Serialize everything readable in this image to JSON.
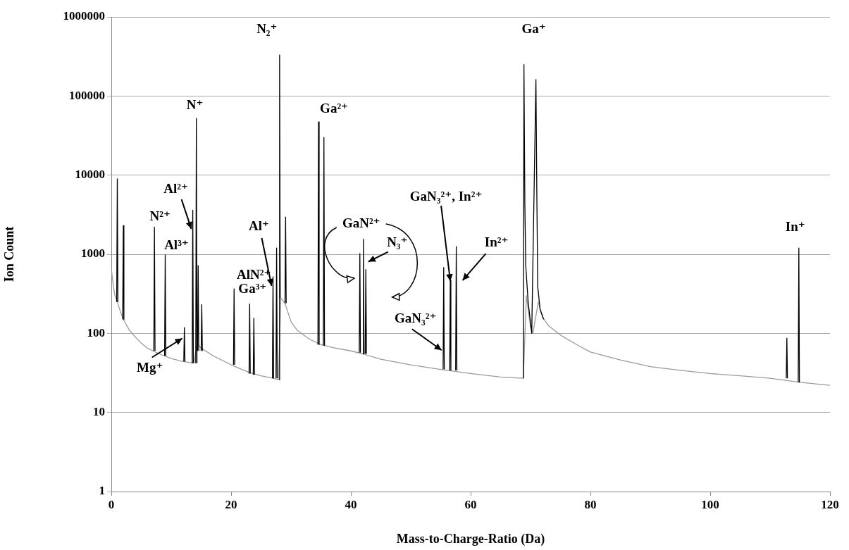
{
  "chart_data": {
    "type": "line",
    "xlabel": "Mass-to-Charge-Ratio (Da)",
    "ylabel": "Ion Count",
    "xlim": [
      0,
      120
    ],
    "xticks": [
      0,
      20,
      40,
      60,
      80,
      100,
      120
    ],
    "ylim": [
      1,
      1000000
    ],
    "yticks": [
      1,
      10,
      100,
      1000,
      10000,
      100000,
      1000000
    ],
    "log": "y",
    "grid": "y",
    "legend": false,
    "series": [
      {
        "color": "#9a9a9a",
        "x": [
          0,
          0.3,
          0.6,
          1,
          1.5,
          2,
          3,
          4,
          5,
          6,
          8,
          10,
          12,
          13.8,
          14.3,
          15,
          17,
          20,
          23,
          25,
          27,
          27.9,
          28.3,
          29,
          30,
          31,
          33,
          35,
          37,
          40,
          42,
          45,
          50,
          55,
          60,
          65,
          68.8,
          69.3,
          70,
          70.4,
          71.3,
          72,
          73,
          75,
          78,
          80,
          85,
          90,
          95,
          100,
          105,
          110,
          115,
          120
        ],
        "values": [
          650,
          420,
          300,
          250,
          190,
          150,
          110,
          90,
          75,
          65,
          55,
          48,
          44,
          42,
          75,
          65,
          52,
          40,
          32,
          29,
          27,
          26,
          280,
          240,
          140,
          110,
          85,
          72,
          66,
          60,
          55,
          47,
          40,
          35,
          31,
          28,
          27,
          300,
          120,
          100,
          250,
          160,
          125,
          95,
          70,
          58,
          46,
          38,
          34,
          31,
          29,
          27,
          24,
          22
        ]
      },
      {
        "color": "#000000",
        "x": [
          0.9,
          1,
          1.1
        ],
        "values": [
          250,
          9000,
          250
        ]
      },
      {
        "color": "#000000",
        "x": [
          1.9,
          2,
          2.1
        ],
        "values": [
          150,
          2300,
          150
        ]
      },
      {
        "color": "#000000",
        "x": [
          7.1,
          7.2,
          7.3
        ],
        "values": [
          60,
          2200,
          60
        ]
      },
      {
        "color": "#000000",
        "x": [
          8.9,
          9,
          9.1
        ],
        "values": [
          52,
          980,
          52
        ]
      },
      {
        "color": "#000000",
        "x": [
          12.1,
          12.2,
          12.3
        ],
        "values": [
          44,
          118,
          44
        ]
      },
      {
        "color": "#000000",
        "x": [
          13.5,
          13.6,
          13.7
        ],
        "values": [
          42,
          3600,
          42
        ]
      },
      {
        "color": "#000000",
        "x": [
          14.1,
          14.2,
          14.3
        ],
        "values": [
          42,
          52000,
          42
        ]
      },
      {
        "color": "#000000",
        "x": [
          14.4,
          14.5,
          14.6
        ],
        "values": [
          60,
          720,
          60
        ]
      },
      {
        "color": "#000000",
        "x": [
          15,
          15.1,
          15.2
        ],
        "values": [
          60,
          230,
          60
        ]
      },
      {
        "color": "#000000",
        "x": [
          20.4,
          20.5,
          20.6
        ],
        "values": [
          40,
          365,
          40
        ]
      },
      {
        "color": "#000000",
        "x": [
          23,
          23.1,
          23.2
        ],
        "values": [
          31,
          235,
          31
        ]
      },
      {
        "color": "#000000",
        "x": [
          23.7,
          23.8,
          23.9
        ],
        "values": [
          30,
          155,
          30
        ]
      },
      {
        "color": "#000000",
        "x": [
          26.9,
          27,
          27.1
        ],
        "values": [
          27,
          520,
          27
        ]
      },
      {
        "color": "#000000",
        "x": [
          27.5,
          27.6,
          27.7
        ],
        "values": [
          27,
          1200,
          27
        ]
      },
      {
        "color": "#000000",
        "x": [
          28,
          28.1,
          28.2
        ],
        "values": [
          26,
          330000,
          280
        ]
      },
      {
        "color": "#000000",
        "x": [
          29,
          29.1,
          29.2
        ],
        "values": [
          240,
          2950,
          240
        ]
      },
      {
        "color": "#000000",
        "x": [
          34.5,
          34.6,
          34.7
        ],
        "values": [
          72,
          47000,
          72
        ]
      },
      {
        "color": "#000000",
        "x": [
          35.4,
          35.5,
          35.6
        ],
        "values": [
          70,
          30000,
          70
        ]
      },
      {
        "color": "#000000",
        "x": [
          41.4,
          41.5,
          41.6
        ],
        "values": [
          57,
          1020,
          57
        ]
      },
      {
        "color": "#000000",
        "x": [
          42,
          42.1,
          42.2
        ],
        "values": [
          55,
          1550,
          55
        ]
      },
      {
        "color": "#000000",
        "x": [
          42.4,
          42.5,
          42.6
        ],
        "values": [
          55,
          640,
          55
        ]
      },
      {
        "color": "#000000",
        "x": [
          55.4,
          55.5,
          55.6
        ],
        "values": [
          35,
          680,
          35
        ]
      },
      {
        "color": "#000000",
        "x": [
          56.5,
          56.6,
          56.7
        ],
        "values": [
          34,
          470,
          34
        ]
      },
      {
        "color": "#000000",
        "x": [
          57.5,
          57.6,
          57.7
        ],
        "values": [
          34,
          1250,
          34
        ]
      },
      {
        "color": "#000000",
        "x": [
          68.8,
          68.9,
          69.05,
          69.2,
          69.6,
          70.2,
          70.9,
          71.05,
          71.2,
          71.6,
          72.2
        ],
        "values": [
          27,
          250000,
          4500,
          720,
          250,
          100,
          162000,
          6000,
          390,
          200,
          150
        ]
      },
      {
        "color": "#000000",
        "x": [
          112.7,
          112.8,
          112.9
        ],
        "values": [
          27,
          87,
          27
        ]
      },
      {
        "color": "#000000",
        "x": [
          114.7,
          114.8,
          114.9
        ],
        "values": [
          24,
          1200,
          24
        ]
      }
    ],
    "annotations": [
      {
        "text": "N₂⁺",
        "x": 28.1,
        "y": 330000
      },
      {
        "text": "Ga⁺",
        "x": 68.9,
        "y": 250000
      },
      {
        "text": "N⁺",
        "x": 14.2,
        "y": 52000
      },
      {
        "text": "Ga²⁺",
        "x": 34.6,
        "y": 47000
      },
      {
        "text": "Al²⁺",
        "x": 13.6,
        "y": 2000
      },
      {
        "text": "N²⁺",
        "x": 7.2,
        "y": 2200
      },
      {
        "text": "Al³⁺",
        "x": 9,
        "y": 980
      },
      {
        "text": "Al⁺",
        "x": 27,
        "y": 390
      },
      {
        "text": "AlN²⁺",
        "x": 20.5,
        "y": 365
      },
      {
        "text": "Ga³⁺",
        "x": 23.1,
        "y": 235
      },
      {
        "text": "Mg⁺",
        "x": 12.2,
        "y": 90
      },
      {
        "text": "GaN²⁺",
        "x": 41.5,
        "y": 1020
      },
      {
        "text": "N₃⁺",
        "x": 42.1,
        "y": 1550
      },
      {
        "text": "GaN₃²⁺, In²⁺",
        "x": 56.6,
        "y": 430
      },
      {
        "text": "In²⁺",
        "x": 57.6,
        "y": 1250
      },
      {
        "text": "GaN₃²⁺",
        "x": 55.5,
        "y": 60
      },
      {
        "text": "In⁺",
        "x": 114.8,
        "y": 1200
      }
    ]
  }
}
